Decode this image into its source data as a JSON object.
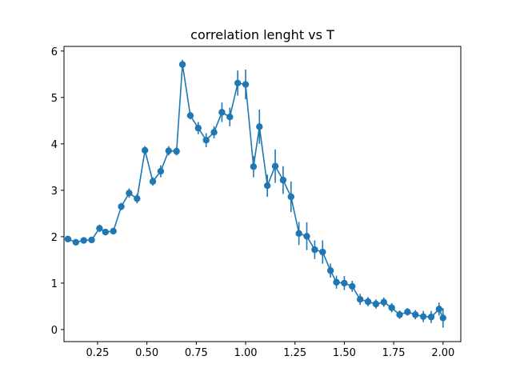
{
  "chart_data": {
    "type": "line",
    "title": "correlation lenght vs T",
    "xlabel": "",
    "ylabel": "",
    "xlim": [
      0.08,
      2.09
    ],
    "ylim": [
      -0.26,
      6.1
    ],
    "x_ticks": [
      0.25,
      0.5,
      0.75,
      1.0,
      1.25,
      1.5,
      1.75,
      2.0
    ],
    "x_tick_labels": [
      "0.25",
      "0.50",
      "0.75",
      "1.00",
      "1.25",
      "1.50",
      "1.75",
      "2.00"
    ],
    "y_ticks": [
      0,
      1,
      2,
      3,
      4,
      5,
      6
    ],
    "y_tick_labels": [
      "0",
      "1",
      "2",
      "3",
      "4",
      "5",
      "6"
    ],
    "grid": false,
    "legend": "none",
    "color": "#1f77b4",
    "marker": "circle",
    "series": [
      {
        "x": [
          0.1,
          0.14,
          0.18,
          0.22,
          0.26,
          0.29,
          0.33,
          0.37,
          0.41,
          0.45,
          0.49,
          0.53,
          0.57,
          0.61,
          0.65,
          0.68,
          0.72,
          0.76,
          0.8,
          0.84,
          0.88,
          0.92,
          0.96,
          1.0,
          1.04,
          1.07,
          1.11,
          1.15,
          1.19,
          1.23,
          1.27,
          1.31,
          1.35,
          1.39,
          1.43,
          1.46,
          1.5,
          1.54,
          1.58,
          1.62,
          1.66,
          1.7,
          1.74,
          1.78,
          1.82,
          1.86,
          1.9,
          1.94,
          1.98,
          2.0
        ],
        "y": [
          1.95,
          1.88,
          1.92,
          1.93,
          2.18,
          2.1,
          2.12,
          2.65,
          2.94,
          2.82,
          3.86,
          3.19,
          3.41,
          3.85,
          3.84,
          5.71,
          4.61,
          4.34,
          4.08,
          4.25,
          4.68,
          4.58,
          5.31,
          5.28,
          3.51,
          4.37,
          3.1,
          3.52,
          3.22,
          2.86,
          2.07,
          2.01,
          1.72,
          1.67,
          1.27,
          1.02,
          1.0,
          0.93,
          0.65,
          0.6,
          0.55,
          0.59,
          0.47,
          0.32,
          0.38,
          0.32,
          0.28,
          0.27,
          0.44,
          0.25
        ],
        "error": [
          0.04,
          0.05,
          0.05,
          0.05,
          0.08,
          0.07,
          0.07,
          0.08,
          0.1,
          0.1,
          0.09,
          0.09,
          0.13,
          0.1,
          0.09,
          0.1,
          0.08,
          0.13,
          0.15,
          0.13,
          0.21,
          0.2,
          0.27,
          0.32,
          0.23,
          0.37,
          0.24,
          0.36,
          0.3,
          0.33,
          0.25,
          0.3,
          0.2,
          0.25,
          0.15,
          0.14,
          0.15,
          0.12,
          0.12,
          0.1,
          0.1,
          0.1,
          0.1,
          0.09,
          0.08,
          0.1,
          0.12,
          0.13,
          0.14,
          0.21
        ]
      }
    ]
  }
}
